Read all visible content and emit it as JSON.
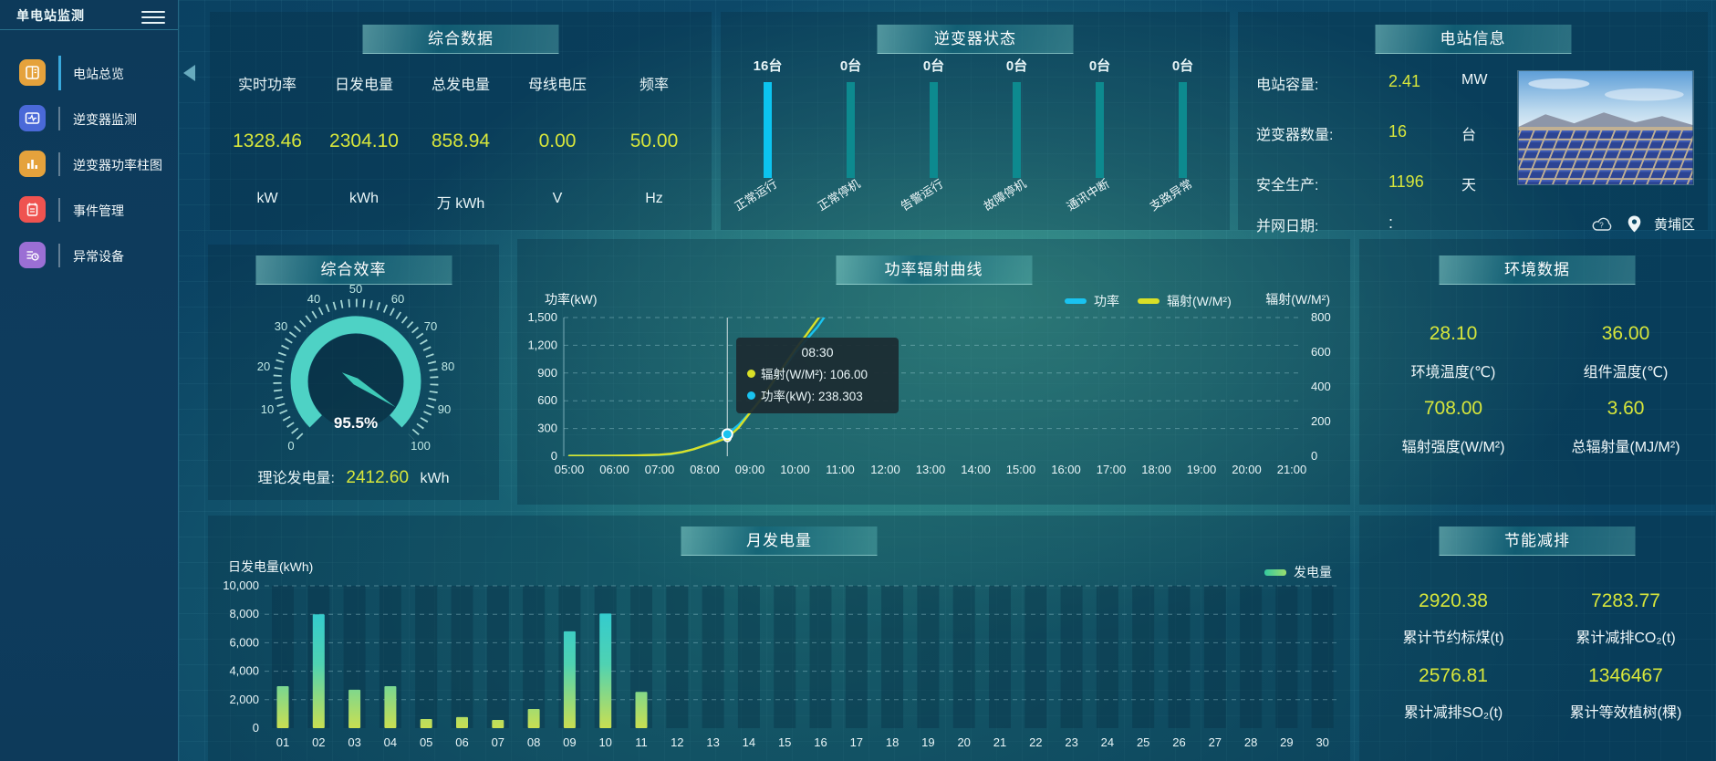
{
  "colors": {
    "accent_cyan": "#19c3f0",
    "accent_yellow": "#d9e027",
    "value_yellow": "#d7e63b",
    "gauge_teal": "#4ed2c5",
    "bar_idle": "#0d8a8f",
    "bar_active": "#0cc4f0"
  },
  "sidebar": {
    "title": "单电站监测",
    "items": [
      {
        "label": "电站总览"
      },
      {
        "label": "逆变器监测"
      },
      {
        "label": "逆变器功率柱图"
      },
      {
        "label": "事件管理"
      },
      {
        "label": "异常设备"
      }
    ]
  },
  "summary": {
    "title": "综合数据",
    "metrics": [
      {
        "label": "实时功率",
        "value": "1328.46",
        "unit": "kW"
      },
      {
        "label": "日发电量",
        "value": "2304.10",
        "unit": "kWh"
      },
      {
        "label": "总发电量",
        "value": "858.94",
        "unit": "万 kWh"
      },
      {
        "label": "母线电压",
        "value": "0.00",
        "unit": "V"
      },
      {
        "label": "频率",
        "value": "50.00",
        "unit": "Hz"
      }
    ]
  },
  "inverter_status": {
    "title": "逆变器状态",
    "items": [
      {
        "count": "16台",
        "label": "正常运行"
      },
      {
        "count": "0台",
        "label": "正常停机"
      },
      {
        "count": "0台",
        "label": "告警运行"
      },
      {
        "count": "0台",
        "label": "故障停机"
      },
      {
        "count": "0台",
        "label": "通讯中断"
      },
      {
        "count": "0台",
        "label": "支路异常"
      }
    ]
  },
  "station_info": {
    "title": "电站信息",
    "rows": [
      {
        "label": "电站容量:",
        "value": "2.41",
        "unit": "MW"
      },
      {
        "label": "逆变器数量:",
        "value": "16",
        "unit": "台"
      },
      {
        "label": "安全生产:",
        "value": "1196",
        "unit": "天"
      },
      {
        "label": "并网日期:",
        "value": ":",
        "unit": ""
      }
    ],
    "location": "黄埔区"
  },
  "efficiency": {
    "title": "综合效率",
    "value": 95.5,
    "value_text": "95.5%",
    "gauge_labels": [
      "0",
      "10",
      "20",
      "30",
      "40",
      "50",
      "60",
      "70",
      "80",
      "90",
      "100"
    ],
    "theory_label": "理论发电量:",
    "theory_value": "2412.60",
    "theory_unit": "kWh"
  },
  "power_curve": {
    "title": "功率辐射曲线",
    "y_left_name": "功率(kW)",
    "y_right_name": "辐射(W/M²)",
    "legend": [
      "功率",
      "辐射(W/M²)"
    ],
    "tooltip": {
      "time": "08:30",
      "rows": [
        {
          "text": "辐射(W/M²): 106.00"
        },
        {
          "text": "功率(kW): 238.303"
        }
      ]
    },
    "chart_data": {
      "type": "line",
      "x_labels": [
        "05:00",
        "06:00",
        "07:00",
        "08:00",
        "09:00",
        "10:00",
        "11:00",
        "12:00",
        "13:00",
        "14:00",
        "15:00",
        "16:00",
        "17:00",
        "18:00",
        "19:00",
        "20:00",
        "21:00"
      ],
      "y_left_ticks": [
        "0",
        "300",
        "600",
        "900",
        "1,200",
        "1,500"
      ],
      "y_right_ticks": [
        "0",
        "200",
        "400",
        "600",
        "800"
      ],
      "ylim_left": [
        0,
        1500
      ],
      "ylim_right": [
        0,
        800
      ],
      "series": [
        {
          "name": "功率",
          "axis": "left",
          "color": "#19c3f0",
          "points": [
            [
              5,
              5
            ],
            [
              5.5,
              5
            ],
            [
              6,
              6
            ],
            [
              6.5,
              8
            ],
            [
              7,
              14
            ],
            [
              7.25,
              22
            ],
            [
              7.5,
              45
            ],
            [
              7.75,
              75
            ],
            [
              8,
              115
            ],
            [
              8.25,
              170
            ],
            [
              8.5,
              238.3
            ],
            [
              8.75,
              340
            ],
            [
              9,
              470
            ],
            [
              9.25,
              620
            ],
            [
              9.5,
              790
            ],
            [
              9.75,
              950
            ],
            [
              10,
              1120
            ],
            [
              10.25,
              1260
            ],
            [
              10.5,
              1400
            ],
            [
              10.7,
              1540
            ]
          ]
        },
        {
          "name": "辐射(W/M²)",
          "axis": "right",
          "color": "#d9e027",
          "points": [
            [
              5,
              2
            ],
            [
              5.5,
              2
            ],
            [
              6,
              3
            ],
            [
              6.5,
              5
            ],
            [
              7,
              9
            ],
            [
              7.25,
              14
            ],
            [
              7.5,
              24
            ],
            [
              7.75,
              40
            ],
            [
              8,
              62
            ],
            [
              8.25,
              82
            ],
            [
              8.5,
              106
            ],
            [
              8.75,
              165
            ],
            [
              9,
              250
            ],
            [
              9.25,
              330
            ],
            [
              9.5,
              425
            ],
            [
              9.75,
              520
            ],
            [
              10,
              615
            ],
            [
              10.25,
              700
            ],
            [
              10.5,
              790
            ],
            [
              10.65,
              845
            ]
          ]
        }
      ],
      "marker": {
        "x": 8.5,
        "power": 238.303,
        "radiation": 106
      }
    }
  },
  "environment": {
    "title": "环境数据",
    "metrics": [
      {
        "value": "28.10",
        "label": "环境温度(℃)"
      },
      {
        "value": "36.00",
        "label": "组件温度(℃)"
      },
      {
        "value": "708.00",
        "label": "辐射强度(W/M²)"
      },
      {
        "value": "3.60",
        "label": "总辐射量(MJ/M²)"
      }
    ]
  },
  "monthly": {
    "title": "月发电量",
    "y_name": "日发电量(kWh)",
    "legend": "发电量",
    "chart_data": {
      "type": "bar",
      "categories": [
        "01",
        "02",
        "03",
        "04",
        "05",
        "06",
        "07",
        "08",
        "09",
        "10",
        "11",
        "12",
        "13",
        "14",
        "15",
        "16",
        "17",
        "18",
        "19",
        "20",
        "21",
        "22",
        "23",
        "24",
        "25",
        "26",
        "27",
        "28",
        "29",
        "30"
      ],
      "values": [
        2950,
        8000,
        2700,
        2950,
        640,
        780,
        580,
        1350,
        6800,
        8050,
        2550,
        0,
        0,
        0,
        0,
        0,
        0,
        0,
        0,
        0,
        0,
        0,
        0,
        0,
        0,
        0,
        0,
        0,
        0,
        0
      ],
      "y_ticks": [
        "0",
        "2,000",
        "4,000",
        "6,000",
        "8,000",
        "10,000"
      ],
      "ylim": [
        0,
        10000
      ]
    }
  },
  "savings": {
    "title": "节能减排",
    "metrics": [
      {
        "value": "2920.38",
        "label": "累计节约标煤(t)"
      },
      {
        "value": "7283.77",
        "label": "累计减排CO₂(t)"
      },
      {
        "value": "2576.81",
        "label": "累计减排SO₂(t)"
      },
      {
        "value": "1346467",
        "label": "累计等效植树(棵)"
      }
    ]
  }
}
